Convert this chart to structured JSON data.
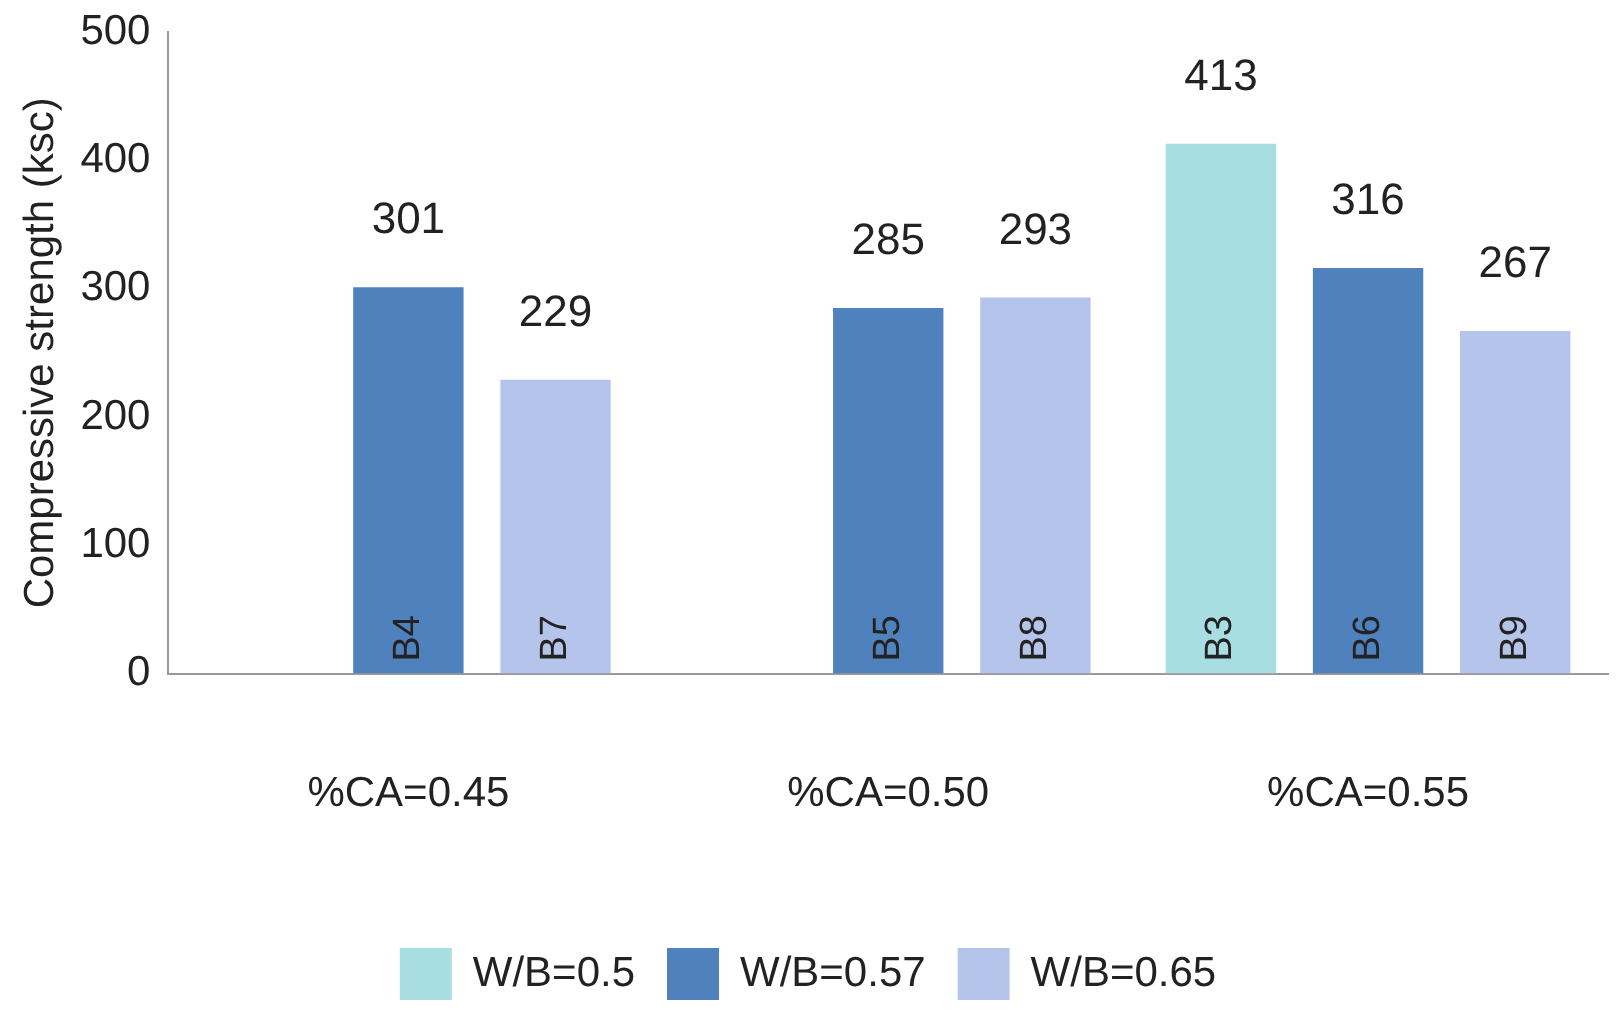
{
  "chart_data": {
    "type": "bar",
    "ylabel": "Compressive strength (ksc)",
    "categories": [
      "%CA=0.45",
      "%CA=0.50",
      "%CA=0.55"
    ],
    "series": [
      {
        "name": "W/B=0.5",
        "color": "#a8dde2",
        "values": [
          null,
          null,
          413
        ]
      },
      {
        "name": "W/B=0.57",
        "color": "#4f81bd",
        "values": [
          301,
          285,
          316
        ]
      },
      {
        "name": "W/B=0.65",
        "color": "#b4c4ea",
        "values": [
          229,
          293,
          267
        ]
      }
    ],
    "ylim": [
      0,
      500
    ],
    "yticks": [
      0,
      100,
      200,
      300,
      400,
      500
    ],
    "grid": false,
    "legend": "bottom",
    "data_labels": true,
    "annotations": [
      "B4",
      "B7",
      "B5",
      "B8",
      "B3",
      "B6",
      "B9"
    ]
  }
}
